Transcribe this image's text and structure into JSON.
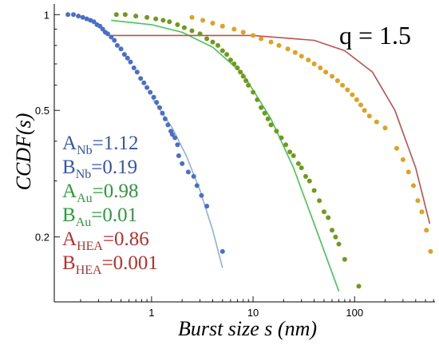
{
  "chart_data": {
    "type": "scatter",
    "title": "",
    "xlabel": "Burst size s (nm)",
    "ylabel": "CCDF(s)",
    "x_scale": "log",
    "y_scale": "log",
    "xlim": [
      0.11,
      620
    ],
    "ylim": [
      0.125,
      1.08
    ],
    "x_ticks": [
      {
        "value": 1,
        "label": "1"
      },
      {
        "value": 10,
        "label": "10"
      },
      {
        "value": 100,
        "label": "100"
      }
    ],
    "y_ticks": [
      {
        "value": 1,
        "label": "1"
      },
      {
        "value": 0.5,
        "label": "0.5"
      },
      {
        "value": 0.2,
        "label": "0.2"
      }
    ],
    "grid": false,
    "annotation": {
      "text": "q = 1.5"
    },
    "parameters": [
      {
        "name": "A",
        "sub": "Nb",
        "value": "1.12",
        "color": "#3355aa"
      },
      {
        "name": "B",
        "sub": "Nb",
        "value": "0.19",
        "color": "#3355aa"
      },
      {
        "name": "A",
        "sub": "Au",
        "value": "0.98",
        "color": "#2e9a3e"
      },
      {
        "name": "B",
        "sub": "Au",
        "value": "0.01",
        "color": "#2e9a3e"
      },
      {
        "name": "A",
        "sub": "HEA",
        "value": "0.86",
        "color": "#b8312e"
      },
      {
        "name": "B",
        "sub": "HEA",
        "value": "0.001",
        "color": "#b8312e"
      }
    ],
    "series": [
      {
        "color": "#4a6fc4",
        "points": [
          [
            0.15,
            1.0
          ],
          [
            0.17,
            1.0
          ],
          [
            0.19,
            0.99
          ],
          [
            0.21,
            0.98
          ],
          [
            0.23,
            0.97
          ],
          [
            0.25,
            0.96
          ],
          [
            0.27,
            0.95
          ],
          [
            0.29,
            0.93
          ],
          [
            0.31,
            0.92
          ],
          [
            0.33,
            0.9
          ],
          [
            0.35,
            0.88
          ],
          [
            0.37,
            0.87
          ],
          [
            0.4,
            0.85
          ],
          [
            0.43,
            0.83
          ],
          [
            0.46,
            0.8
          ],
          [
            0.5,
            0.78
          ],
          [
            0.54,
            0.75
          ],
          [
            0.58,
            0.73
          ],
          [
            0.62,
            0.71
          ],
          [
            0.67,
            0.68
          ],
          [
            0.72,
            0.66
          ],
          [
            0.78,
            0.63
          ],
          [
            0.84,
            0.61
          ],
          [
            0.9,
            0.59
          ],
          [
            0.97,
            0.57
          ],
          [
            1.05,
            0.55
          ],
          [
            1.12,
            0.53
          ],
          [
            1.2,
            0.51
          ],
          [
            1.28,
            0.49
          ],
          [
            1.36,
            0.47
          ],
          [
            1.45,
            0.45
          ],
          [
            1.55,
            0.43
          ],
          [
            1.6,
            0.42
          ],
          [
            1.7,
            0.41
          ],
          [
            1.8,
            0.39
          ],
          [
            1.85,
            0.36
          ],
          [
            2.0,
            0.34
          ],
          [
            2.3,
            0.32
          ],
          [
            2.6,
            0.31
          ],
          [
            2.8,
            0.29
          ],
          [
            3.1,
            0.27
          ],
          [
            3.5,
            0.25
          ],
          [
            5.0,
            0.18
          ]
        ]
      },
      {
        "color": "#6f9a1c",
        "points": [
          [
            0.45,
            1.0
          ],
          [
            0.55,
            1.0
          ],
          [
            0.7,
            0.99
          ],
          [
            0.9,
            0.98
          ],
          [
            1.1,
            0.97
          ],
          [
            1.3,
            0.96
          ],
          [
            1.5,
            0.95
          ],
          [
            1.8,
            0.93
          ],
          [
            2.1,
            0.91
          ],
          [
            2.5,
            0.89
          ],
          [
            3.0,
            0.87
          ],
          [
            3.5,
            0.84
          ],
          [
            4.0,
            0.82
          ],
          [
            4.5,
            0.8
          ],
          [
            5.0,
            0.77
          ],
          [
            5.5,
            0.75
          ],
          [
            6.0,
            0.72
          ],
          [
            6.5,
            0.7
          ],
          [
            7.0,
            0.68
          ],
          [
            7.5,
            0.66
          ],
          [
            8.0,
            0.64
          ],
          [
            8.5,
            0.62
          ],
          [
            9.0,
            0.6
          ],
          [
            10.0,
            0.57
          ],
          [
            11.0,
            0.54
          ],
          [
            12.0,
            0.51
          ],
          [
            13.0,
            0.49
          ],
          [
            14.0,
            0.47
          ],
          [
            15.0,
            0.45
          ],
          [
            17.0,
            0.43
          ],
          [
            19.0,
            0.41
          ],
          [
            21.0,
            0.39
          ],
          [
            23.0,
            0.37
          ],
          [
            25.0,
            0.36
          ],
          [
            28.0,
            0.34
          ],
          [
            30.0,
            0.33
          ],
          [
            33.0,
            0.31
          ],
          [
            36.0,
            0.3
          ],
          [
            40.0,
            0.28
          ],
          [
            45.0,
            0.26
          ],
          [
            50.0,
            0.24
          ],
          [
            55.0,
            0.23
          ],
          [
            60.0,
            0.21
          ],
          [
            65.0,
            0.2
          ],
          [
            70.0,
            0.19
          ],
          [
            80.0,
            0.17
          ],
          [
            110.0,
            0.14
          ]
        ]
      },
      {
        "color": "#e0a020",
        "points": [
          [
            2.5,
            0.98
          ],
          [
            3.2,
            0.96
          ],
          [
            4.0,
            0.94
          ],
          [
            5.0,
            0.92
          ],
          [
            6.5,
            0.9
          ],
          [
            8.0,
            0.88
          ],
          [
            10.0,
            0.86
          ],
          [
            12.0,
            0.84
          ],
          [
            15.0,
            0.82
          ],
          [
            18.0,
            0.8
          ],
          [
            22.0,
            0.78
          ],
          [
            26.0,
            0.76
          ],
          [
            30.0,
            0.74
          ],
          [
            35.0,
            0.72
          ],
          [
            40.0,
            0.7
          ],
          [
            46.0,
            0.68
          ],
          [
            52.0,
            0.66
          ],
          [
            60.0,
            0.64
          ],
          [
            68.0,
            0.62
          ],
          [
            76.0,
            0.6
          ],
          [
            85.0,
            0.58
          ],
          [
            95.0,
            0.56
          ],
          [
            105.0,
            0.54
          ],
          [
            115.0,
            0.52
          ],
          [
            125.0,
            0.5
          ],
          [
            140.0,
            0.48
          ],
          [
            165.0,
            0.46
          ],
          [
            200.0,
            0.44
          ],
          [
            260.0,
            0.38
          ],
          [
            300.0,
            0.35
          ],
          [
            340.0,
            0.32
          ],
          [
            380.0,
            0.29
          ],
          [
            420.0,
            0.26
          ],
          [
            460.0,
            0.24
          ],
          [
            510.0,
            0.21
          ],
          [
            560.0,
            0.18
          ]
        ]
      }
    ],
    "fits": [
      {
        "color": "#8fb0dd",
        "points": [
          [
            1.0,
            0.55
          ],
          [
            1.6,
            0.44
          ],
          [
            2.2,
            0.36
          ],
          [
            3.0,
            0.28
          ],
          [
            4.0,
            0.21
          ],
          [
            5.0,
            0.16
          ]
        ]
      },
      {
        "color": "#46c653",
        "points": [
          [
            0.4,
            0.96
          ],
          [
            1.0,
            0.93
          ],
          [
            2.0,
            0.88
          ],
          [
            4.0,
            0.79
          ],
          [
            8.0,
            0.65
          ],
          [
            15.0,
            0.47
          ],
          [
            25.0,
            0.33
          ],
          [
            40.0,
            0.22
          ],
          [
            70.0,
            0.135
          ]
        ]
      },
      {
        "color": "#c0504d",
        "points": [
          [
            0.4,
            0.86
          ],
          [
            10.0,
            0.86
          ],
          [
            40.0,
            0.83
          ],
          [
            80.0,
            0.77
          ],
          [
            150.0,
            0.66
          ],
          [
            250.0,
            0.5
          ],
          [
            400.0,
            0.33
          ],
          [
            550.0,
            0.22
          ]
        ]
      }
    ]
  }
}
